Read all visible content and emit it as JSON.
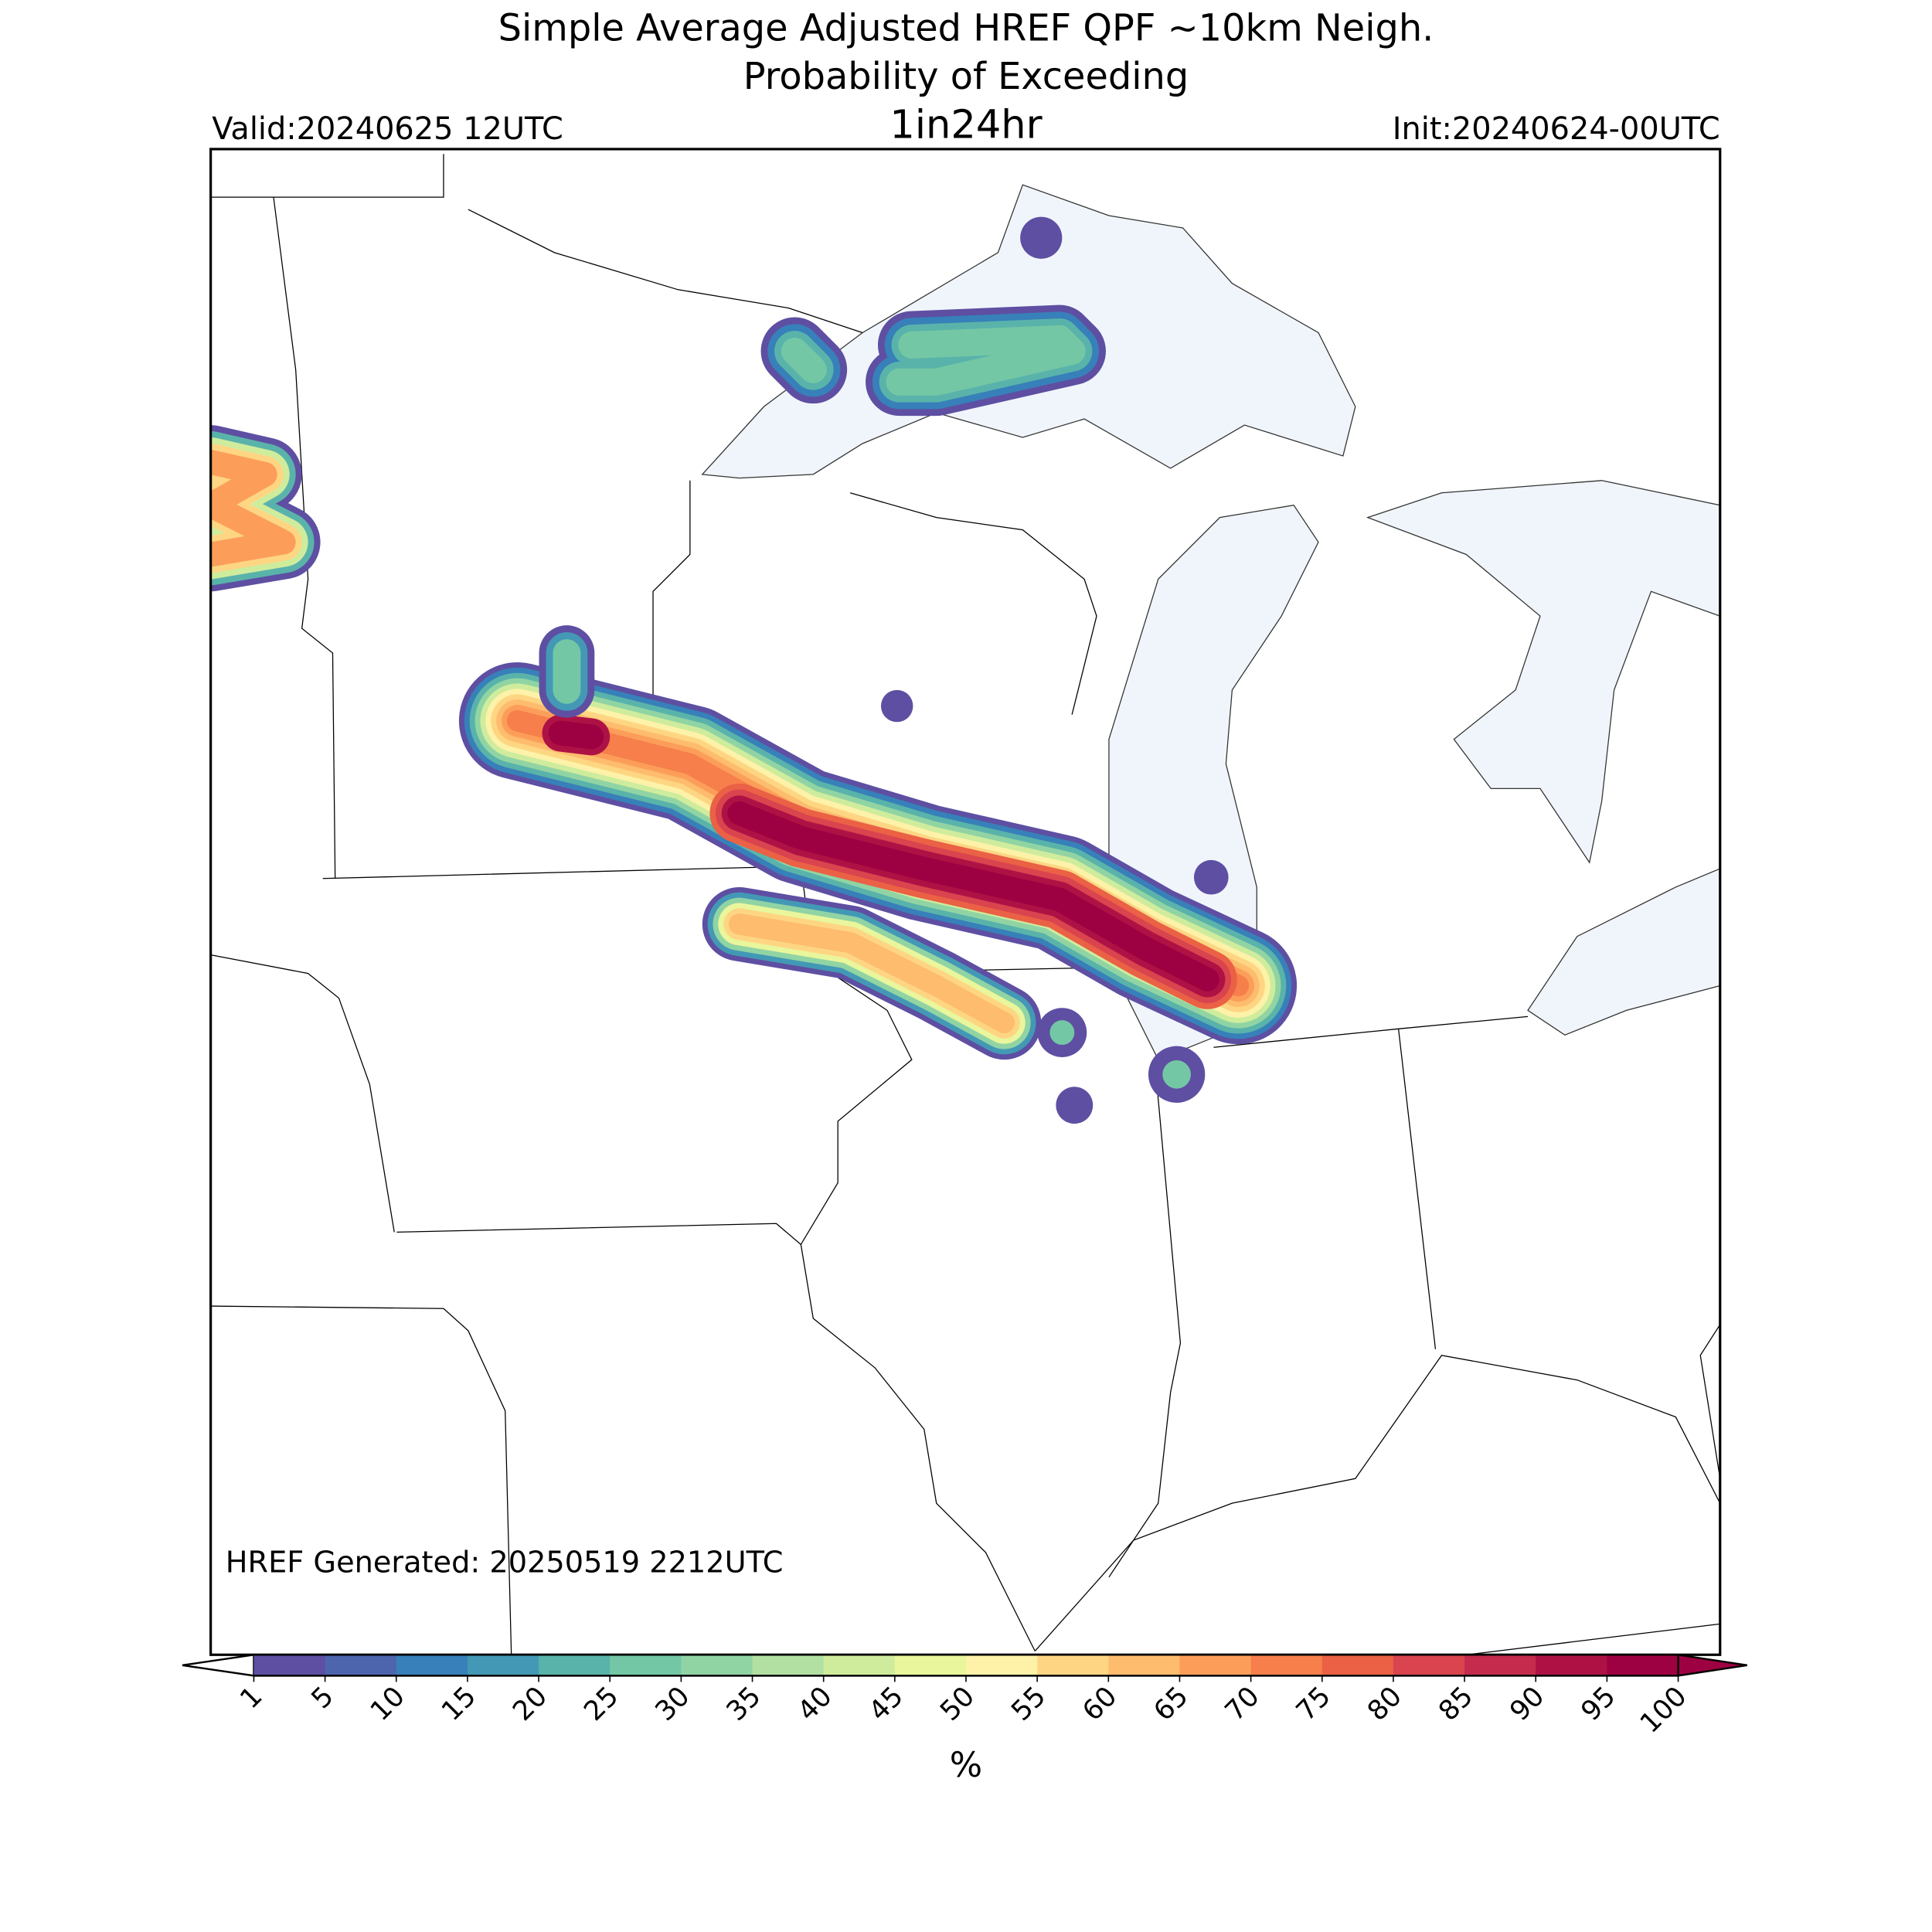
{
  "header": {
    "title_lines": [
      "Simple Average Adjusted HREF QPF ~10km Neigh.",
      "Probability of Exceeding"
    ],
    "threshold": "1in24hr",
    "valid": "Valid:20240625 12UTC",
    "init": "Init:20240624-00UTC"
  },
  "map": {
    "footnote": "HREF Generated: 20250519 2212UTC"
  },
  "colorbar": {
    "ticks": [
      1,
      5,
      10,
      15,
      20,
      25,
      30,
      35,
      40,
      45,
      50,
      55,
      60,
      65,
      70,
      75,
      80,
      85,
      90,
      95,
      100
    ],
    "colors": [
      "#5e4fa2",
      "#4d65ad",
      "#3780b9",
      "#4399b5",
      "#59b3aa",
      "#74c7a5",
      "#91d4a4",
      "#b1e0a2",
      "#cfec9d",
      "#e9f69c",
      "#fdf2a8",
      "#fed683",
      "#fdbc6e",
      "#fc9e5a",
      "#f67f4b",
      "#ea6145",
      "#d9444e",
      "#c42b4d",
      "#ae1245",
      "#9e0142"
    ],
    "label": "%"
  }
}
